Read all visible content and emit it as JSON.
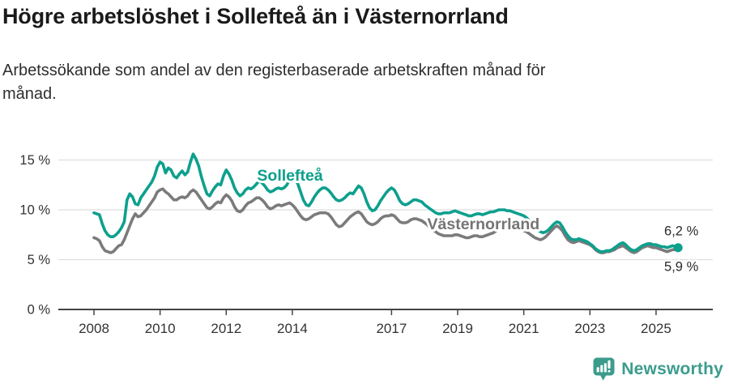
{
  "header": {
    "title": "Högre arbetslöshet i Sollefteå än i Västernorrland",
    "subtitle_lines": [
      "Arbetssökande som andel av den registerbaserade arbetskraften månad för",
      "månad."
    ]
  },
  "footer": {
    "brand": "Newsworthy",
    "logo_icon": "newsworthy-bubble-barchart-icon",
    "logo_color": "#3b9c8c"
  },
  "colors": {
    "accent_teal": "#0da08d",
    "series_gray": "#7b7b7b",
    "gridline": "#dedede",
    "axis": "#444444",
    "axis_text": "#333333",
    "annotation_text": "#2b2b2b",
    "background": "#ffffff"
  },
  "chart_data": {
    "type": "line",
    "title": "Högre arbetslöshet i Sollefteå än i Västernorrland",
    "subtitle": "Arbetssökande som andel av den registerbaserade arbetskraften månad för månad.",
    "frequency": "monthly",
    "start_year": 2008,
    "start_month": 1,
    "end_year": 2025,
    "end_month": 9,
    "unit": "%",
    "grid": "horizontal-only",
    "legend": "inline-series-labels",
    "x_axis": {
      "ticks": [
        2008,
        2010,
        2012,
        2014,
        2017,
        2019,
        2021,
        2023,
        2025
      ],
      "tick_labels": [
        "2008",
        "2010",
        "2012",
        "2014",
        "2017",
        "2019",
        "2021",
        "2023",
        "2025"
      ]
    },
    "y_axis": {
      "ticks": [
        0,
        5,
        10,
        15
      ],
      "tick_labels": [
        "0 %",
        "5 %",
        "10 %",
        "15 %"
      ],
      "range": [
        0,
        16.8
      ]
    },
    "series_labels": [
      {
        "text": "Sollefteå",
        "color": "#0da08d",
        "x": 2013.93,
        "y": 13.5
      },
      {
        "text": "Västernorrland",
        "color": "#757575",
        "x": 2019.78,
        "y": 8.6
      }
    ],
    "series": [
      {
        "name": "Sollefteå",
        "color": "#0da08d",
        "end_label": "6,2 %",
        "end_value": 6.2,
        "end_dot": true,
        "values": [
          9.7,
          9.6,
          9.5,
          8.6,
          7.9,
          7.5,
          7.3,
          7.3,
          7.5,
          7.8,
          8.2,
          8.8,
          11.0,
          11.6,
          11.3,
          10.6,
          10.5,
          11.2,
          11.6,
          12.0,
          12.4,
          12.8,
          13.4,
          14.3,
          14.8,
          14.6,
          13.7,
          14.2,
          14.0,
          13.4,
          13.2,
          13.6,
          13.9,
          13.5,
          13.8,
          14.8,
          15.6,
          15.1,
          14.4,
          13.3,
          12.4,
          11.6,
          11.4,
          11.9,
          12.3,
          12.6,
          12.5,
          13.4,
          14.0,
          13.6,
          13.0,
          12.2,
          11.7,
          11.4,
          11.6,
          12.0,
          12.2,
          12.1,
          12.3,
          12.6,
          12.9,
          12.7,
          12.4,
          12.0,
          11.8,
          11.9,
          12.1,
          12.2,
          12.1,
          12.2,
          12.5,
          13.0,
          13.3,
          13.1,
          12.6,
          11.8,
          11.0,
          10.5,
          10.4,
          10.8,
          11.3,
          11.7,
          12.0,
          12.2,
          12.2,
          12.0,
          11.7,
          11.3,
          11.0,
          10.9,
          11.0,
          11.2,
          11.5,
          11.7,
          11.6,
          12.0,
          12.4,
          12.2,
          11.6,
          10.8,
          10.2,
          9.9,
          10.0,
          10.4,
          10.9,
          11.3,
          11.7,
          12.0,
          12.2,
          12.0,
          11.5,
          10.9,
          10.6,
          10.5,
          10.6,
          10.8,
          11.0,
          11.0,
          10.9,
          10.8,
          10.5,
          10.3,
          10.1,
          9.9,
          9.7,
          9.6,
          9.6,
          9.7,
          9.7,
          9.7,
          9.8,
          9.9,
          9.8,
          9.7,
          9.6,
          9.5,
          9.4,
          9.4,
          9.5,
          9.6,
          9.6,
          9.5,
          9.6,
          9.7,
          9.8,
          9.8,
          9.9,
          10.0,
          10.0,
          10.0,
          9.9,
          9.9,
          9.8,
          9.7,
          9.6,
          9.5,
          9.4,
          9.2,
          8.9,
          8.6,
          8.3,
          8.0,
          7.8,
          7.7,
          7.8,
          8.0,
          8.3,
          8.6,
          8.8,
          8.7,
          8.3,
          7.8,
          7.4,
          7.1,
          7.0,
          7.0,
          7.1,
          7.0,
          6.9,
          6.8,
          6.6,
          6.4,
          6.1,
          5.9,
          5.8,
          5.8,
          5.9,
          5.9,
          6.0,
          6.2,
          6.4,
          6.6,
          6.7,
          6.5,
          6.2,
          6.0,
          5.9,
          6.0,
          6.2,
          6.4,
          6.5,
          6.6,
          6.6,
          6.5,
          6.5,
          6.4,
          6.3,
          6.3,
          6.2,
          6.3,
          6.4,
          6.3,
          6.2
        ]
      },
      {
        "name": "Västernorrland",
        "color": "#7b7b7b",
        "end_label": "5,9 %",
        "end_value": 5.9,
        "end_dot": false,
        "values": [
          7.2,
          7.1,
          6.9,
          6.3,
          5.9,
          5.8,
          5.7,
          5.8,
          6.1,
          6.4,
          6.5,
          7.0,
          7.7,
          8.4,
          9.1,
          9.6,
          9.3,
          9.4,
          9.7,
          10.0,
          10.4,
          10.8,
          11.2,
          11.8,
          12.0,
          12.1,
          11.8,
          11.6,
          11.3,
          11.0,
          11.0,
          11.2,
          11.3,
          11.2,
          11.4,
          11.8,
          12.0,
          11.8,
          11.4,
          11.0,
          10.6,
          10.2,
          10.1,
          10.3,
          10.6,
          10.8,
          10.7,
          11.2,
          11.5,
          11.3,
          10.9,
          10.3,
          9.9,
          9.8,
          10.0,
          10.4,
          10.7,
          10.8,
          11.0,
          11.2,
          11.2,
          11.0,
          10.7,
          10.3,
          10.1,
          10.2,
          10.4,
          10.5,
          10.4,
          10.5,
          10.6,
          10.7,
          10.5,
          10.2,
          9.8,
          9.4,
          9.1,
          9.0,
          9.1,
          9.3,
          9.5,
          9.6,
          9.7,
          9.7,
          9.7,
          9.6,
          9.3,
          8.9,
          8.5,
          8.3,
          8.4,
          8.7,
          9.0,
          9.3,
          9.5,
          9.7,
          9.8,
          9.6,
          9.2,
          8.8,
          8.6,
          8.5,
          8.6,
          8.8,
          9.1,
          9.3,
          9.4,
          9.4,
          9.5,
          9.4,
          9.1,
          8.8,
          8.7,
          8.7,
          8.8,
          9.0,
          9.1,
          9.1,
          9.0,
          8.9,
          8.7,
          8.5,
          8.2,
          8.0,
          7.8,
          7.6,
          7.5,
          7.4,
          7.4,
          7.4,
          7.4,
          7.5,
          7.5,
          7.4,
          7.3,
          7.2,
          7.2,
          7.3,
          7.4,
          7.4,
          7.3,
          7.3,
          7.4,
          7.5,
          7.6,
          7.7,
          7.9,
          8.4,
          8.7,
          8.8,
          8.8,
          8.7,
          8.5,
          8.3,
          8.1,
          8.0,
          7.9,
          7.8,
          7.6,
          7.4,
          7.2,
          7.1,
          7.0,
          7.1,
          7.3,
          7.6,
          7.9,
          8.2,
          8.4,
          8.2,
          7.9,
          7.4,
          7.0,
          6.8,
          6.7,
          6.8,
          6.9,
          6.8,
          6.7,
          6.6,
          6.5,
          6.3,
          6.0,
          5.8,
          5.7,
          5.7,
          5.8,
          5.8,
          5.9,
          6.0,
          6.2,
          6.3,
          6.4,
          6.2,
          6.0,
          5.8,
          5.7,
          5.8,
          6.0,
          6.2,
          6.3,
          6.4,
          6.3,
          6.2,
          6.2,
          6.1,
          6.0,
          5.9,
          5.8,
          5.9,
          6.0,
          6.0,
          5.9
        ]
      }
    ]
  }
}
